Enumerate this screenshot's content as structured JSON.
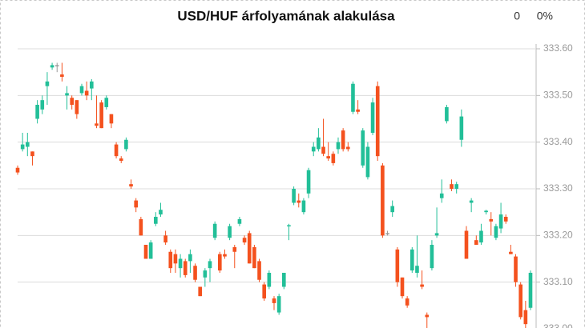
{
  "chart_data": {
    "type": "candlestick",
    "title": "USD/HUF árfolyamának alakulása",
    "stats": {
      "change": "0",
      "change_percent": "0%"
    },
    "up_color": "#22bf98",
    "down_color": "#f4511e",
    "flat_color": "#999999",
    "grid": true,
    "ylim": [
      333.0,
      333.6
    ],
    "yticks": [
      {
        "value": 333.0,
        "label": "333.00"
      },
      {
        "value": 333.1,
        "label": "333.10"
      },
      {
        "value": 333.2,
        "label": "333.20"
      },
      {
        "value": 333.3,
        "label": "333.30"
      },
      {
        "value": 333.4,
        "label": "333.40"
      },
      {
        "value": 333.5,
        "label": "333.50"
      },
      {
        "value": 333.6,
        "label": "333.60"
      }
    ],
    "open": [
      333.345,
      333.385,
      333.39,
      333.38,
      333.45,
      333.47,
      333.52,
      333.56,
      333.565,
      333.545,
      333.5,
      333.495,
      333.49,
      333.505,
      333.51,
      333.515,
      333.44,
      333.485,
      333.475,
      333.46,
      333.395,
      333.365,
      333.385,
      333.31,
      333.275,
      333.235,
      333.18,
      333.15,
      333.225,
      333.245,
      333.2,
      333.165,
      333.16,
      333.13,
      333.145,
      333.145,
      333.135,
      333.09,
      333.11,
      333.13,
      333.195,
      333.16,
      333.16,
      333.195,
      333.175,
      333.225,
      333.195,
      333.205,
      333.175,
      333.145,
      333.095,
      333.09,
      333.065,
      333.035,
      333.09,
      333.22,
      333.27,
      333.275,
      333.25,
      333.29,
      333.38,
      333.385,
      333.39,
      333.37,
      333.375,
      333.385,
      333.425,
      333.39,
      333.465,
      333.47,
      333.35,
      333.325,
      333.42,
      333.52,
      333.35,
      333.205,
      333.25,
      333.17,
      333.11,
      333.065,
      333.125,
      333.12,
      333.095,
      333.03,
      333.13,
      333.2,
      333.28,
      333.445,
      333.31,
      333.3,
      333.405,
      333.21,
      333.27,
      333.19,
      333.185,
      333.25,
      333.235,
      333.195,
      333.215,
      333.24,
      333.165,
      333.155,
      333.095,
      333.04,
      333.045
    ],
    "high": [
      333.35,
      333.42,
      333.42,
      333.38,
      333.49,
      333.5,
      333.55,
      333.57,
      333.57,
      333.57,
      333.52,
      333.5,
      333.49,
      333.525,
      333.53,
      333.535,
      333.5,
      333.49,
      333.5,
      333.46,
      333.4,
      333.37,
      333.41,
      333.32,
      333.28,
      333.24,
      333.18,
      333.19,
      333.25,
      333.27,
      333.21,
      333.17,
      333.17,
      333.16,
      333.15,
      333.17,
      333.14,
      333.09,
      333.13,
      333.15,
      333.23,
      333.165,
      333.17,
      333.225,
      333.18,
      333.24,
      333.2,
      333.21,
      333.18,
      333.15,
      333.1,
      333.125,
      333.07,
      333.075,
      333.12,
      333.225,
      333.305,
      333.29,
      333.28,
      333.345,
      333.4,
      333.43,
      333.45,
      333.4,
      333.38,
      333.41,
      333.43,
      333.4,
      333.53,
      333.49,
      333.43,
      333.4,
      333.495,
      333.53,
      333.355,
      333.21,
      333.275,
      333.175,
      333.11,
      333.07,
      333.175,
      333.2,
      333.125,
      333.035,
      333.19,
      333.26,
      333.32,
      333.48,
      333.32,
      333.315,
      333.47,
      333.22,
      333.28,
      333.2,
      333.225,
      333.255,
      333.25,
      333.225,
      333.27,
      333.245,
      333.18,
      333.16,
      333.1,
      333.06,
      333.125
    ],
    "low": [
      333.33,
      333.38,
      333.37,
      333.35,
      333.44,
      333.46,
      333.48,
      333.555,
      333.55,
      333.53,
      333.47,
      333.47,
      333.45,
      333.5,
      333.49,
      333.49,
      333.43,
      333.43,
      333.47,
      333.43,
      333.365,
      333.355,
      333.38,
      333.3,
      333.25,
      333.2,
      333.15,
      333.15,
      333.22,
      333.24,
      333.18,
      333.12,
      333.12,
      333.11,
      333.11,
      333.12,
      333.1,
      333.07,
      333.09,
      333.1,
      333.19,
      333.12,
      333.15,
      333.19,
      333.13,
      333.22,
      333.18,
      333.14,
      333.13,
      333.1,
      333.06,
      333.085,
      333.04,
      333.03,
      333.085,
      333.19,
      333.265,
      333.26,
      333.245,
      333.28,
      333.37,
      333.38,
      333.37,
      333.36,
      333.35,
      333.375,
      333.38,
      333.38,
      333.46,
      333.46,
      333.345,
      333.32,
      333.415,
      333.36,
      333.195,
      333.2,
      333.24,
      333.09,
      333.065,
      333.045,
      333.12,
      333.11,
      333.085,
      333.0,
      333.125,
      333.195,
      333.27,
      333.44,
      333.295,
      333.29,
      333.39,
      333.15,
      333.25,
      333.18,
      333.18,
      333.245,
      333.2,
      333.19,
      333.205,
      333.225,
      333.16,
      333.09,
      333.02,
      333.0,
      333.04
    ],
    "close": [
      333.335,
      333.395,
      333.4,
      333.37,
      333.48,
      333.49,
      333.53,
      333.565,
      333.565,
      333.54,
      333.505,
      333.48,
      333.46,
      333.52,
      333.5,
      333.53,
      333.435,
      333.43,
      333.495,
      333.44,
      333.37,
      333.36,
      333.405,
      333.305,
      333.26,
      333.2,
      333.15,
      333.185,
      333.24,
      333.255,
      333.185,
      333.13,
      333.14,
      333.15,
      333.115,
      333.16,
      333.105,
      333.07,
      333.125,
      333.145,
      333.225,
      333.125,
      333.155,
      333.22,
      333.165,
      333.235,
      333.185,
      333.14,
      333.13,
      333.105,
      333.065,
      333.12,
      333.055,
      333.07,
      333.12,
      333.222,
      333.3,
      333.27,
      333.275,
      333.34,
      333.39,
      333.41,
      333.375,
      333.365,
      333.355,
      333.4,
      333.385,
      333.385,
      333.525,
      333.465,
      333.425,
      333.39,
      333.485,
      333.37,
      333.2,
      333.205,
      333.263,
      333.1,
      333.07,
      333.05,
      333.17,
      333.135,
      333.09,
      333.025,
      333.18,
      333.205,
      333.29,
      333.475,
      333.3,
      333.31,
      333.455,
      333.15,
      333.275,
      333.18,
      333.21,
      333.253,
      333.23,
      333.22,
      333.245,
      333.23,
      333.16,
      333.1,
      333.025,
      333.01,
      333.12
    ]
  }
}
